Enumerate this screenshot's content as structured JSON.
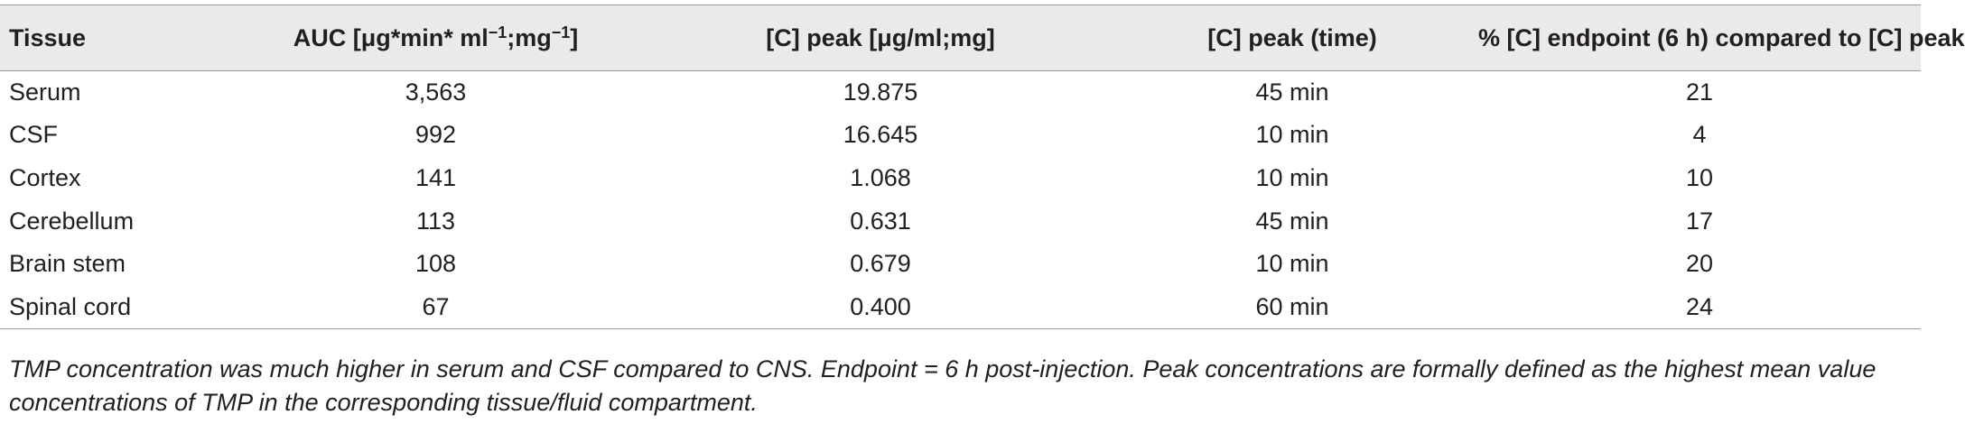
{
  "table": {
    "headers": {
      "tissue": "Tissue",
      "auc_prefix": "AUC [μg*min* ml",
      "auc_sup1": "−1",
      "auc_mid": ";mg",
      "auc_sup2": "−1",
      "auc_suffix": "]",
      "peak": "[C] peak [μg/ml;mg]",
      "peak_time": "[C] peak (time)",
      "endpoint_pct": "% [C] endpoint (6 h) compared to [C] peak"
    },
    "rows": [
      {
        "tissue": "Serum",
        "auc": "3,563",
        "peak": "19.875",
        "time": "45 min",
        "pct": "21"
      },
      {
        "tissue": "CSF",
        "auc": "992",
        "peak": "16.645",
        "time": "10 min",
        "pct": "4"
      },
      {
        "tissue": "Cortex",
        "auc": "141",
        "peak": "1.068",
        "time": "10 min",
        "pct": "10"
      },
      {
        "tissue": "Cerebellum",
        "auc": "113",
        "peak": "0.631",
        "time": "45 min",
        "pct": "17"
      },
      {
        "tissue": "Brain stem",
        "auc": "108",
        "peak": "0.679",
        "time": "10 min",
        "pct": "20"
      },
      {
        "tissue": "Spinal cord",
        "auc": "67",
        "peak": "0.400",
        "time": "60 min",
        "pct": "24"
      }
    ]
  },
  "footnote": "TMP concentration was much higher in serum and CSF compared to CNS. Endpoint = 6 h post-injection. Peak concentrations are formally defined as the highest mean value concentrations of TMP in the corresponding tissue/fluid compartment."
}
